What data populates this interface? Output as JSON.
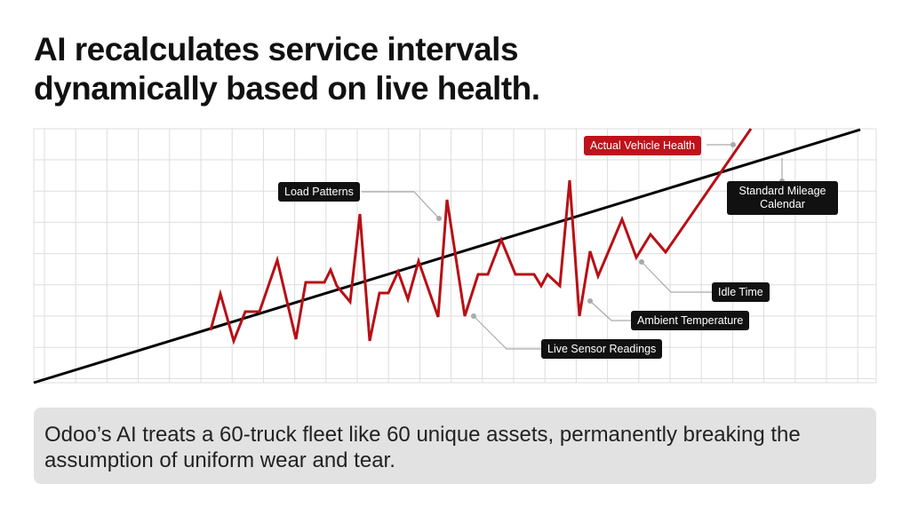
{
  "title": {
    "line1": "AI recalculates service intervals",
    "line2": "dynamically based on live health."
  },
  "diagram": {
    "labels": {
      "actual_vehicle_health": "Actual Vehicle Health",
      "load_patterns": "Load Patterns",
      "standard_mileage_calendar": "Standard Mileage Calendar",
      "idle_time": "Idle Time",
      "ambient_temperature": "Ambient Temperature",
      "live_sensor_readings": "Live Sensor Readings"
    },
    "colors": {
      "actual_health_line": "#b80f15",
      "standard_line": "#000000",
      "grid": "#dddddd",
      "label_bg": "#111111",
      "highlight_label_bg": "#c0121a"
    }
  },
  "caption": "Odoo’s AI treats a 60-truck fleet like 60 unique assets, permanently breaking the assumption of uniform wear and tear."
}
